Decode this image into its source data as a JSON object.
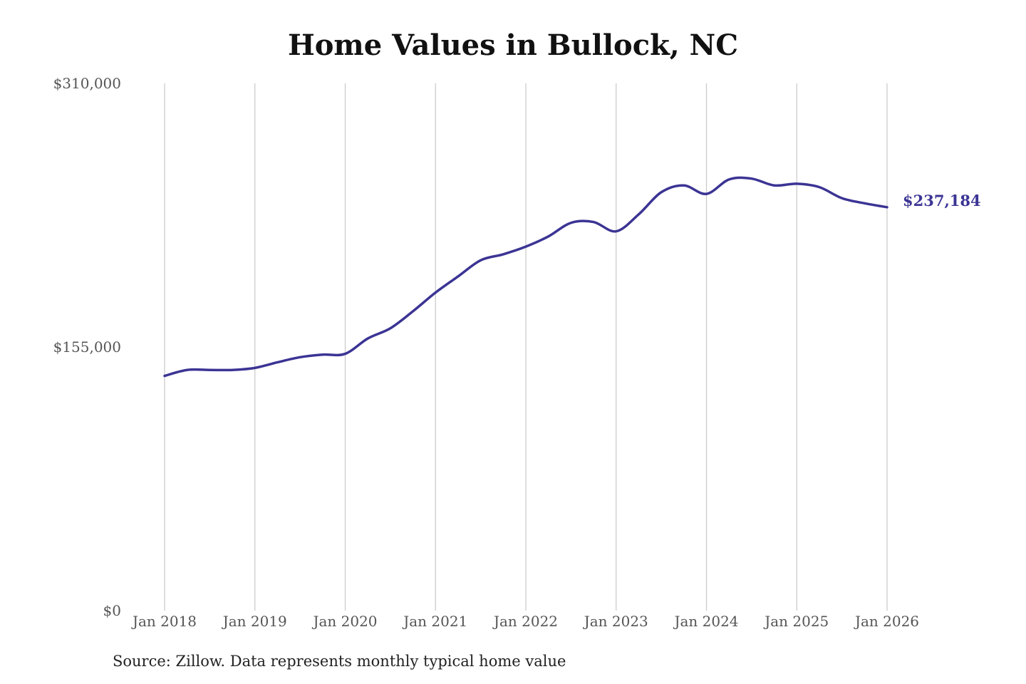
{
  "chart_data": {
    "type": "line",
    "title": "Home Values in Bullock, NC",
    "source": "Source: Zillow. Data represents monthly typical home value",
    "xlabel": "",
    "ylabel": "",
    "ylim": [
      0,
      310000
    ],
    "yticks": [
      {
        "value": 0,
        "label": "$0"
      },
      {
        "value": 155000,
        "label": "$155,000"
      },
      {
        "value": 310000,
        "label": "$310,000"
      }
    ],
    "xticks": [
      {
        "value": "2018-01",
        "label": "Jan 2018"
      },
      {
        "value": "2019-01",
        "label": "Jan 2019"
      },
      {
        "value": "2020-01",
        "label": "Jan 2020"
      },
      {
        "value": "2021-01",
        "label": "Jan 2021"
      },
      {
        "value": "2022-01",
        "label": "Jan 2022"
      },
      {
        "value": "2023-01",
        "label": "Jan 2023"
      },
      {
        "value": "2024-01",
        "label": "Jan 2024"
      },
      {
        "value": "2025-01",
        "label": "Jan 2025"
      },
      {
        "value": "2026-01",
        "label": "Jan 2026"
      }
    ],
    "grid": "vertical",
    "line_color": "#3b3494",
    "end_label": "$237,184",
    "series": [
      {
        "x": [
          "2018-01",
          "2018-04",
          "2018-07",
          "2018-10",
          "2019-01",
          "2019-04",
          "2019-07",
          "2019-10",
          "2020-01",
          "2020-04",
          "2020-07",
          "2020-10",
          "2021-01",
          "2021-04",
          "2021-07",
          "2021-10",
          "2022-01",
          "2022-04",
          "2022-07",
          "2022-10",
          "2023-01",
          "2023-04",
          "2023-07",
          "2023-10",
          "2024-01",
          "2024-04",
          "2024-07",
          "2024-10",
          "2025-01",
          "2025-04",
          "2025-07",
          "2025-10",
          "2026-01"
        ],
        "values": [
          138000,
          141500,
          141500,
          141500,
          142700,
          146000,
          149000,
          150500,
          151000,
          160000,
          166000,
          176000,
          187000,
          196500,
          206000,
          209500,
          214000,
          220000,
          228000,
          228500,
          223000,
          233000,
          246000,
          250000,
          245000,
          253500,
          254000,
          250000,
          251000,
          249000,
          242500,
          239500,
          237184
        ]
      }
    ]
  }
}
